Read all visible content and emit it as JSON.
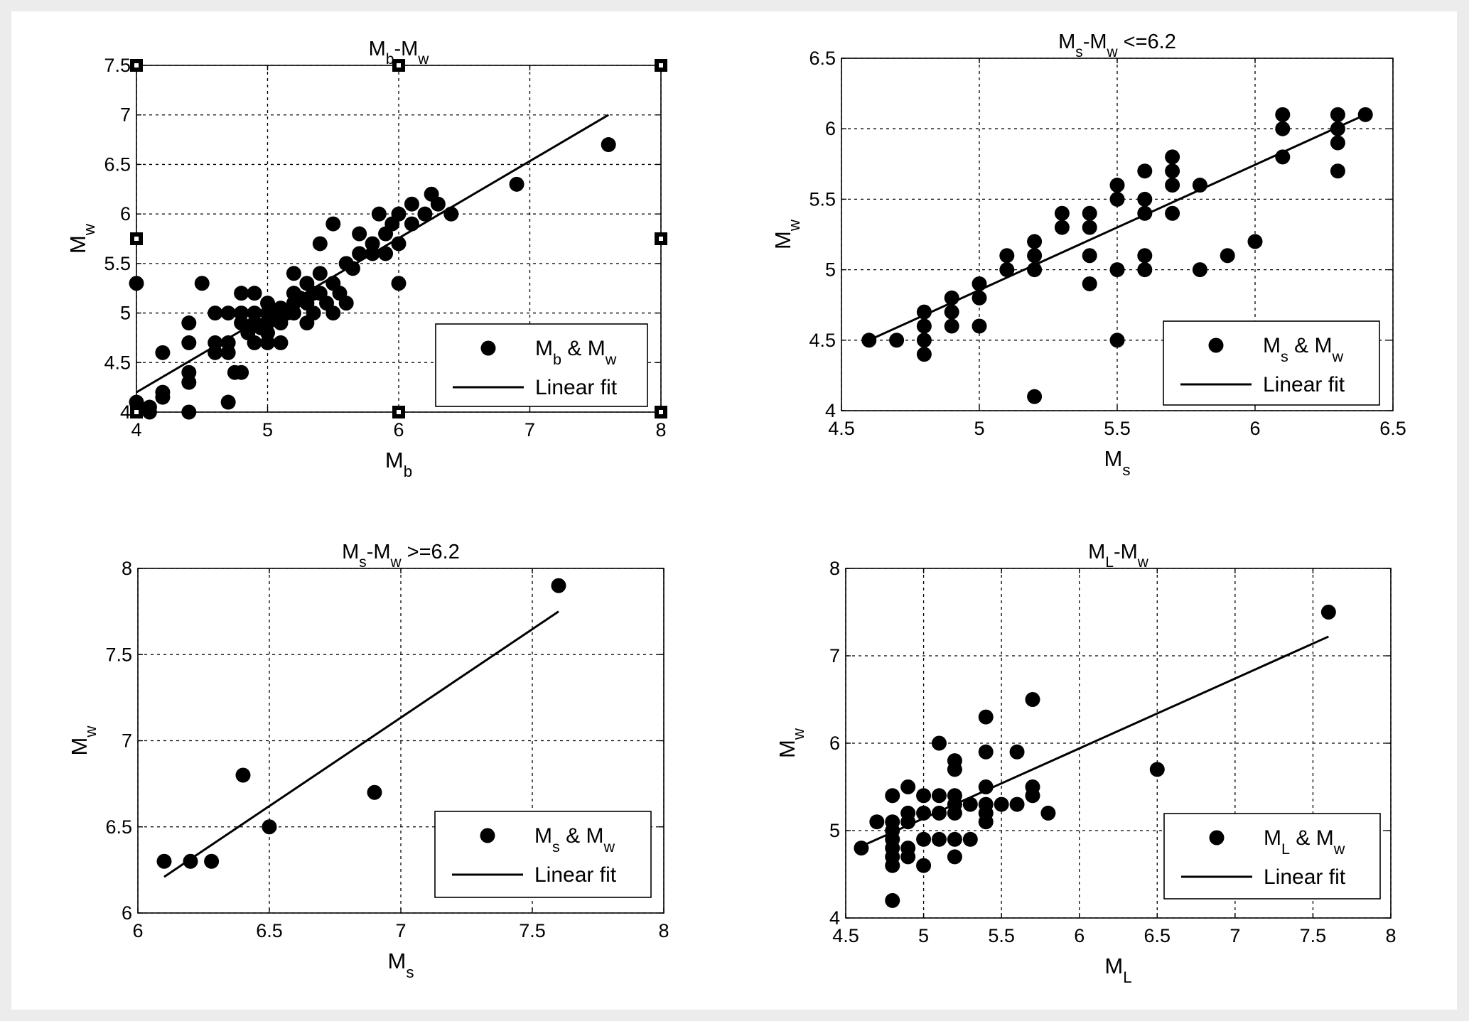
{
  "chart_data": [
    {
      "type": "scatter",
      "title": "Mb-Mw",
      "title_parts": [
        [
          "M",
          ""
        ],
        [
          "b",
          "sub"
        ],
        [
          "-M",
          ""
        ],
        [
          "w",
          "sub"
        ]
      ],
      "xlabel_parts": [
        [
          "M",
          ""
        ],
        [
          "b",
          "sub"
        ]
      ],
      "ylabel_parts": [
        [
          "M",
          ""
        ],
        [
          "w",
          "sub"
        ]
      ],
      "xlim": [
        4,
        8
      ],
      "ylim": [
        4,
        7.5
      ],
      "xticks": [
        "4",
        "5",
        "6",
        "7",
        "8"
      ],
      "yticks": [
        "4",
        "4.5",
        "5",
        "5.5",
        "6",
        "6.5",
        "7",
        "7.5"
      ],
      "grid": true,
      "legend_position": "bottom-right",
      "legend_entries": [
        {
          "kind": "marker",
          "parts": [
            [
              "M",
              ""
            ],
            [
              "b",
              "sub"
            ],
            [
              " & M",
              ""
            ],
            [
              "w",
              "sub"
            ]
          ]
        },
        {
          "kind": "line",
          "parts": [
            [
              "Linear fit",
              ""
            ]
          ]
        }
      ],
      "series": [
        {
          "name": "Mb & Mw",
          "kind": "scatter",
          "points": [
            [
              4.0,
              5.3
            ],
            [
              4.0,
              4.1
            ],
            [
              4.1,
              4.05
            ],
            [
              4.1,
              4.0
            ],
            [
              4.2,
              4.6
            ],
            [
              4.2,
              4.2
            ],
            [
              4.2,
              4.15
            ],
            [
              4.4,
              4.9
            ],
            [
              4.4,
              4.7
            ],
            [
              4.4,
              4.4
            ],
            [
              4.4,
              4.3
            ],
            [
              4.4,
              4.0
            ],
            [
              4.5,
              5.3
            ],
            [
              4.6,
              5.0
            ],
            [
              4.6,
              4.7
            ],
            [
              4.6,
              4.6
            ],
            [
              4.7,
              5.0
            ],
            [
              4.7,
              4.7
            ],
            [
              4.7,
              4.6
            ],
            [
              4.7,
              4.1
            ],
            [
              4.75,
              4.4
            ],
            [
              4.8,
              5.2
            ],
            [
              4.8,
              5.0
            ],
            [
              4.8,
              4.9
            ],
            [
              4.8,
              4.4
            ],
            [
              4.85,
              4.8
            ],
            [
              4.9,
              5.2
            ],
            [
              4.9,
              5.0
            ],
            [
              4.9,
              4.9
            ],
            [
              4.9,
              4.7
            ],
            [
              4.95,
              4.85
            ],
            [
              5.0,
              5.1
            ],
            [
              5.0,
              5.0
            ],
            [
              5.0,
              4.9
            ],
            [
              5.0,
              4.8
            ],
            [
              5.0,
              4.7
            ],
            [
              5.05,
              4.95
            ],
            [
              5.1,
              5.05
            ],
            [
              5.1,
              4.9
            ],
            [
              5.1,
              4.7
            ],
            [
              5.15,
              5.0
            ],
            [
              5.2,
              5.4
            ],
            [
              5.2,
              5.2
            ],
            [
              5.2,
              5.1
            ],
            [
              5.2,
              5.0
            ],
            [
              5.25,
              5.15
            ],
            [
              5.3,
              5.3
            ],
            [
              5.3,
              5.1
            ],
            [
              5.3,
              4.9
            ],
            [
              5.35,
              5.2
            ],
            [
              5.35,
              5.0
            ],
            [
              5.4,
              5.7
            ],
            [
              5.4,
              5.4
            ],
            [
              5.4,
              5.2
            ],
            [
              5.45,
              5.1
            ],
            [
              5.5,
              5.9
            ],
            [
              5.5,
              5.3
            ],
            [
              5.5,
              5.0
            ],
            [
              5.55,
              5.2
            ],
            [
              5.6,
              5.5
            ],
            [
              5.6,
              5.1
            ],
            [
              5.65,
              5.45
            ],
            [
              5.7,
              5.6
            ],
            [
              5.7,
              5.8
            ],
            [
              5.8,
              5.6
            ],
            [
              5.8,
              5.7
            ],
            [
              5.85,
              6.0
            ],
            [
              5.9,
              5.6
            ],
            [
              5.9,
              5.8
            ],
            [
              5.95,
              5.9
            ],
            [
              6.0,
              6.0
            ],
            [
              6.0,
              5.7
            ],
            [
              6.0,
              5.3
            ],
            [
              6.1,
              6.1
            ],
            [
              6.1,
              5.9
            ],
            [
              6.2,
              6.0
            ],
            [
              6.25,
              6.2
            ],
            [
              6.3,
              6.1
            ],
            [
              6.4,
              6.0
            ],
            [
              6.9,
              6.3
            ],
            [
              7.6,
              6.7
            ]
          ]
        },
        {
          "name": "Linear fit",
          "kind": "line",
          "points": [
            [
              4.0,
              4.2
            ],
            [
              7.6,
              7.0
            ]
          ]
        }
      ]
    },
    {
      "type": "scatter",
      "title": "Ms-Mw <=6.2",
      "title_parts": [
        [
          "M",
          ""
        ],
        [
          "s",
          "sub"
        ],
        [
          "-M",
          ""
        ],
        [
          "w",
          "sub"
        ],
        [
          " <=6.2",
          ""
        ]
      ],
      "xlabel_parts": [
        [
          "M",
          ""
        ],
        [
          "s",
          "sub"
        ]
      ],
      "ylabel_parts": [
        [
          "M",
          ""
        ],
        [
          "w",
          "sub"
        ]
      ],
      "xlim": [
        4.5,
        6.5
      ],
      "ylim": [
        4,
        6.5
      ],
      "xticks": [
        "4.5",
        "5",
        "5.5",
        "6",
        "6.5"
      ],
      "yticks": [
        "4",
        "4.5",
        "5",
        "5.5",
        "6",
        "6.5"
      ],
      "grid": true,
      "legend_position": "bottom-right",
      "legend_entries": [
        {
          "kind": "marker",
          "parts": [
            [
              "M",
              ""
            ],
            [
              "s",
              "sub"
            ],
            [
              " & M",
              ""
            ],
            [
              "w",
              "sub"
            ]
          ]
        },
        {
          "kind": "line",
          "parts": [
            [
              "Linear fit",
              ""
            ]
          ]
        }
      ],
      "series": [
        {
          "name": "Ms & Mw",
          "kind": "scatter",
          "points": [
            [
              4.6,
              4.5
            ],
            [
              4.7,
              4.5
            ],
            [
              4.8,
              4.7
            ],
            [
              4.8,
              4.6
            ],
            [
              4.8,
              4.5
            ],
            [
              4.8,
              4.4
            ],
            [
              4.9,
              4.8
            ],
            [
              4.9,
              4.7
            ],
            [
              4.9,
              4.6
            ],
            [
              5.0,
              4.9
            ],
            [
              5.0,
              4.8
            ],
            [
              5.0,
              4.6
            ],
            [
              5.1,
              5.1
            ],
            [
              5.1,
              5.0
            ],
            [
              5.2,
              5.2
            ],
            [
              5.2,
              5.1
            ],
            [
              5.2,
              5.0
            ],
            [
              5.2,
              4.1
            ],
            [
              5.3,
              5.4
            ],
            [
              5.3,
              5.3
            ],
            [
              5.4,
              5.4
            ],
            [
              5.4,
              5.3
            ],
            [
              5.4,
              5.1
            ],
            [
              5.4,
              4.9
            ],
            [
              5.5,
              5.6
            ],
            [
              5.5,
              5.5
            ],
            [
              5.5,
              5.0
            ],
            [
              5.5,
              4.5
            ],
            [
              5.6,
              5.7
            ],
            [
              5.6,
              5.5
            ],
            [
              5.6,
              5.4
            ],
            [
              5.6,
              5.1
            ],
            [
              5.6,
              5.0
            ],
            [
              5.7,
              5.8
            ],
            [
              5.7,
              5.7
            ],
            [
              5.7,
              5.6
            ],
            [
              5.7,
              5.4
            ],
            [
              5.8,
              5.6
            ],
            [
              5.8,
              5.0
            ],
            [
              5.9,
              5.1
            ],
            [
              6.0,
              5.2
            ],
            [
              6.1,
              6.1
            ],
            [
              6.1,
              6.0
            ],
            [
              6.1,
              5.8
            ],
            [
              6.3,
              6.1
            ],
            [
              6.3,
              6.0
            ],
            [
              6.3,
              5.9
            ],
            [
              6.3,
              5.7
            ],
            [
              6.4,
              6.1
            ]
          ]
        },
        {
          "name": "Linear fit",
          "kind": "line",
          "points": [
            [
              4.6,
              4.5
            ],
            [
              6.4,
              6.1
            ]
          ]
        }
      ]
    },
    {
      "type": "scatter",
      "title": "Ms-Mw >=6.2",
      "title_parts": [
        [
          "M",
          ""
        ],
        [
          "s",
          "sub"
        ],
        [
          "-M",
          ""
        ],
        [
          "w",
          "sub"
        ],
        [
          " >=6.2",
          ""
        ]
      ],
      "xlabel_parts": [
        [
          "M",
          ""
        ],
        [
          "s",
          "sub"
        ]
      ],
      "ylabel_parts": [
        [
          "M",
          ""
        ],
        [
          "w",
          "sub"
        ]
      ],
      "xlim": [
        6,
        8
      ],
      "ylim": [
        6,
        8
      ],
      "xticks": [
        "6",
        "6.5",
        "7",
        "7.5",
        "8"
      ],
      "yticks": [
        "6",
        "6.5",
        "7",
        "7.5",
        "8"
      ],
      "grid": true,
      "legend_position": "bottom-right",
      "legend_entries": [
        {
          "kind": "marker",
          "parts": [
            [
              "M",
              ""
            ],
            [
              "s",
              "sub"
            ],
            [
              " & M",
              ""
            ],
            [
              "w",
              "sub"
            ]
          ]
        },
        {
          "kind": "line",
          "parts": [
            [
              "Linear fit",
              ""
            ]
          ]
        }
      ],
      "series": [
        {
          "name": "Ms & Mw",
          "kind": "scatter",
          "points": [
            [
              6.1,
              6.3
            ],
            [
              6.2,
              6.3
            ],
            [
              6.28,
              6.3
            ],
            [
              6.4,
              6.8
            ],
            [
              6.5,
              6.5
            ],
            [
              6.9,
              6.7
            ],
            [
              7.6,
              7.9
            ]
          ]
        },
        {
          "name": "Linear fit",
          "kind": "line",
          "points": [
            [
              6.1,
              6.21
            ],
            [
              7.6,
              7.75
            ]
          ]
        }
      ]
    },
    {
      "type": "scatter",
      "title": "ML-Mw",
      "title_parts": [
        [
          "M",
          ""
        ],
        [
          "L",
          "sub"
        ],
        [
          "-M",
          ""
        ],
        [
          "w",
          "sub"
        ]
      ],
      "xlabel_parts": [
        [
          "M",
          ""
        ],
        [
          "L",
          "sub"
        ]
      ],
      "ylabel_parts": [
        [
          "M",
          ""
        ],
        [
          "w",
          "sub"
        ]
      ],
      "xlim": [
        4.5,
        8
      ],
      "ylim": [
        4,
        8
      ],
      "xticks": [
        "4.5",
        "5",
        "5.5",
        "6",
        "6.5",
        "7",
        "7.5",
        "8"
      ],
      "yticks": [
        "4",
        "5",
        "6",
        "7",
        "8"
      ],
      "grid": true,
      "legend_position": "bottom-right",
      "legend_entries": [
        {
          "kind": "marker",
          "parts": [
            [
              "M",
              ""
            ],
            [
              "L",
              "sub"
            ],
            [
              " & M",
              ""
            ],
            [
              "w",
              "sub"
            ]
          ]
        },
        {
          "kind": "line",
          "parts": [
            [
              "Linear fit",
              ""
            ]
          ]
        }
      ],
      "series": [
        {
          "name": "ML & Mw",
          "kind": "scatter",
          "points": [
            [
              4.6,
              4.8
            ],
            [
              4.7,
              5.1
            ],
            [
              4.8,
              5.4
            ],
            [
              4.8,
              5.1
            ],
            [
              4.8,
              5.0
            ],
            [
              4.8,
              4.9
            ],
            [
              4.8,
              4.8
            ],
            [
              4.8,
              4.7
            ],
            [
              4.8,
              4.6
            ],
            [
              4.8,
              4.2
            ],
            [
              4.9,
              5.5
            ],
            [
              4.9,
              5.2
            ],
            [
              4.9,
              5.1
            ],
            [
              4.9,
              4.8
            ],
            [
              4.9,
              4.7
            ],
            [
              5.0,
              5.4
            ],
            [
              5.0,
              5.2
            ],
            [
              5.0,
              4.9
            ],
            [
              5.0,
              4.6
            ],
            [
              5.1,
              6.0
            ],
            [
              5.1,
              5.4
            ],
            [
              5.1,
              5.2
            ],
            [
              5.1,
              4.9
            ],
            [
              5.2,
              5.8
            ],
            [
              5.2,
              5.7
            ],
            [
              5.2,
              5.4
            ],
            [
              5.2,
              5.3
            ],
            [
              5.2,
              5.2
            ],
            [
              5.2,
              4.9
            ],
            [
              5.2,
              4.7
            ],
            [
              5.3,
              5.3
            ],
            [
              5.3,
              4.9
            ],
            [
              5.4,
              6.3
            ],
            [
              5.4,
              5.9
            ],
            [
              5.4,
              5.5
            ],
            [
              5.4,
              5.3
            ],
            [
              5.4,
              5.2
            ],
            [
              5.4,
              5.1
            ],
            [
              5.5,
              5.3
            ],
            [
              5.6,
              5.9
            ],
            [
              5.6,
              5.3
            ],
            [
              5.7,
              6.5
            ],
            [
              5.7,
              5.5
            ],
            [
              5.7,
              5.4
            ],
            [
              5.8,
              5.2
            ],
            [
              6.5,
              5.7
            ],
            [
              7.6,
              7.5
            ]
          ]
        },
        {
          "name": "Linear fit",
          "kind": "line",
          "points": [
            [
              4.6,
              4.82
            ],
            [
              7.6,
              7.22
            ]
          ]
        }
      ]
    }
  ]
}
